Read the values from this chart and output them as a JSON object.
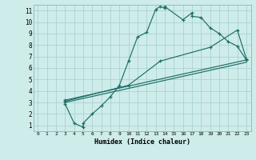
{
  "xlabel": "Humidex (Indice chaleur)",
  "bg_color": "#ceecea",
  "grid_color": "#aad4d0",
  "line_color": "#1e6e65",
  "xlim": [
    -0.5,
    23.5
  ],
  "ylim": [
    0.5,
    11.5
  ],
  "xticks": [
    0,
    1,
    2,
    3,
    4,
    5,
    6,
    7,
    8,
    9,
    10,
    11,
    12,
    13,
    14,
    15,
    16,
    17,
    18,
    19,
    20,
    21,
    22,
    23
  ],
  "yticks": [
    1,
    2,
    3,
    4,
    5,
    6,
    7,
    8,
    9,
    10,
    11
  ],
  "line1_x": [
    3,
    3,
    4,
    5,
    5,
    6,
    7,
    8,
    9,
    10,
    11,
    12,
    13,
    13.5,
    14,
    14,
    16,
    17,
    17,
    18,
    19,
    20,
    21,
    22,
    23
  ],
  "line1_y": [
    3.2,
    2.9,
    1.2,
    0.85,
    1.2,
    2.0,
    2.7,
    3.5,
    4.5,
    6.6,
    8.7,
    9.1,
    11.1,
    11.35,
    11.2,
    11.35,
    10.2,
    10.8,
    10.5,
    10.4,
    9.5,
    9.0,
    8.3,
    7.9,
    6.7
  ],
  "line2_x": [
    3,
    10,
    13.5,
    19,
    22,
    23
  ],
  "line2_y": [
    3.1,
    4.5,
    6.6,
    7.8,
    9.3,
    6.8
  ],
  "line3_x": [
    3,
    23
  ],
  "line3_y": [
    3.0,
    6.5
  ],
  "line4_x": [
    3,
    23
  ],
  "line4_y": [
    3.2,
    6.7
  ]
}
